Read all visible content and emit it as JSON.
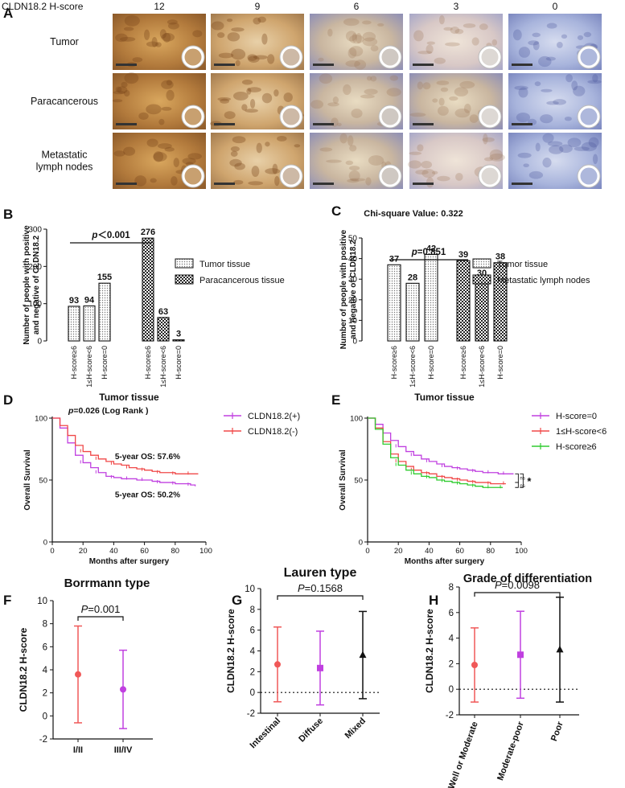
{
  "panel_a": {
    "letter": "A",
    "header_label": "CLDN18.2 H-score",
    "columns": [
      "12",
      "9",
      "6",
      "3",
      "0"
    ],
    "rows": [
      {
        "lines": [
          "Tumor"
        ]
      },
      {
        "lines": [
          "Paracancerous"
        ]
      },
      {
        "lines": [
          "Metastatic",
          "lymph nodes"
        ]
      }
    ]
  },
  "chart_data": [
    {
      "id": "B",
      "letter": "B",
      "type": "bar",
      "ylabel_lines": [
        "Number of people with positive",
        "and negative of CLDN18.2"
      ],
      "ylim": [
        0,
        300
      ],
      "yticks": [
        0,
        100,
        200,
        300
      ],
      "pvalue": {
        "prefix": "p",
        "rest": "＜0.001"
      },
      "categories": [
        "H-score≥6",
        "1≤H-score<6",
        "H-score=0"
      ],
      "series": [
        {
          "name": "Tumor tissue",
          "values": [
            93,
            94,
            155
          ]
        },
        {
          "name": "Paracancerous tissue",
          "values": [
            276,
            63,
            3
          ]
        }
      ],
      "legend_position": "right"
    },
    {
      "id": "C",
      "letter": "C",
      "type": "bar",
      "title": "Chi-square Value: 0.322",
      "ylabel_lines": [
        "Number of people with positive",
        "and negative of CLDN18.2"
      ],
      "ylim": [
        0,
        50
      ],
      "yticks": [
        0,
        10,
        20,
        30,
        40,
        50
      ],
      "pvalue": {
        "prefix": "p",
        "rest": "=0.851"
      },
      "categories": [
        "H-score≥6",
        "1≤H-score<6",
        "H-score=0"
      ],
      "series": [
        {
          "name": "Tumor tissue",
          "values": [
            37,
            28,
            42
          ]
        },
        {
          "name": "Metastatic lymph nodes",
          "values": [
            39,
            30,
            38
          ]
        }
      ],
      "legend_position": "right"
    },
    {
      "id": "D",
      "letter": "D",
      "type": "line",
      "title": "Tumor tissue",
      "subtitle": {
        "prefix": "p",
        "rest": "=0.026 (Log Rank )"
      },
      "xlabel": "Months after surgery",
      "ylabel": "Overall Survival",
      "xlim": [
        0,
        100
      ],
      "ylim": [
        0,
        100
      ],
      "xticks": [
        0,
        20,
        40,
        60,
        80,
        100
      ],
      "yticks": [
        0,
        50,
        100
      ],
      "annotations": [
        "5-year OS: 57.6%",
        "5-year OS: 50.2%"
      ],
      "series": [
        {
          "name": "CLDN18.2(+)",
          "color": "#c040e0",
          "x": [
            0,
            5,
            10,
            15,
            20,
            25,
            30,
            35,
            40,
            45,
            50,
            55,
            60,
            65,
            70,
            75,
            80,
            85,
            90,
            93
          ],
          "y": [
            100,
            92,
            80,
            70,
            64,
            60,
            56,
            53,
            52,
            51,
            51,
            50,
            50,
            49,
            48,
            48,
            47,
            47,
            46,
            45
          ]
        },
        {
          "name": "CLDN18.2(-)",
          "color": "#f04848",
          "x": [
            0,
            5,
            10,
            15,
            20,
            25,
            30,
            35,
            40,
            45,
            50,
            55,
            60,
            65,
            70,
            75,
            80,
            85,
            90,
            95
          ],
          "y": [
            100,
            94,
            86,
            78,
            73,
            70,
            67,
            65,
            63,
            62,
            60,
            59,
            58,
            57,
            56,
            56,
            55,
            55,
            55,
            55
          ]
        }
      ]
    },
    {
      "id": "E",
      "letter": "E",
      "type": "line",
      "title": "Tumor tissue",
      "xlabel": "Months after surgery",
      "ylabel": "Overall Survival",
      "xlim": [
        0,
        100
      ],
      "ylim": [
        0,
        100
      ],
      "xticks": [
        0,
        20,
        40,
        60,
        80,
        100
      ],
      "yticks": [
        0,
        50,
        100
      ],
      "brackets": [
        "ns",
        "ns",
        "*"
      ],
      "series": [
        {
          "name": "H-score=0",
          "color": "#c040e0",
          "x": [
            0,
            5,
            10,
            15,
            20,
            25,
            30,
            35,
            40,
            45,
            50,
            55,
            60,
            65,
            70,
            75,
            80,
            85,
            90,
            95
          ],
          "y": [
            100,
            95,
            88,
            82,
            77,
            73,
            70,
            67,
            65,
            63,
            61,
            60,
            59,
            58,
            57,
            56,
            56,
            55,
            55,
            55
          ]
        },
        {
          "name": "1≤H-score<6",
          "color": "#f04848",
          "x": [
            0,
            5,
            10,
            15,
            20,
            25,
            30,
            35,
            40,
            45,
            50,
            55,
            60,
            65,
            70,
            75,
            80,
            85,
            90
          ],
          "y": [
            100,
            92,
            81,
            71,
            65,
            61,
            58,
            56,
            55,
            53,
            52,
            51,
            50,
            49,
            48,
            48,
            47,
            47,
            47
          ]
        },
        {
          "name": "H-score≥6",
          "color": "#30cc30",
          "x": [
            0,
            5,
            10,
            15,
            20,
            25,
            30,
            35,
            40,
            45,
            50,
            55,
            60,
            65,
            70,
            75,
            80,
            85,
            88
          ],
          "y": [
            100,
            91,
            79,
            68,
            62,
            58,
            55,
            53,
            52,
            50,
            49,
            48,
            47,
            46,
            45,
            44,
            44,
            44,
            44
          ]
        }
      ]
    },
    {
      "id": "F",
      "letter": "F",
      "type": "scatter",
      "title": "Borrmann type",
      "ylabel": "CLDN18.2 H-score",
      "ylim": [
        -2,
        10
      ],
      "yticks": [
        -2,
        0,
        2,
        4,
        6,
        8,
        10
      ],
      "pvalue": {
        "prefix": "P",
        "rest": "=0.001"
      },
      "categories": [
        "I/II",
        "III/IV"
      ],
      "groups": [
        {
          "mean": 3.6,
          "low": -0.6,
          "high": 7.8,
          "color": "#f05858",
          "marker": "circle"
        },
        {
          "mean": 2.3,
          "low": -1.1,
          "high": 5.7,
          "color": "#c040e0",
          "marker": "circle"
        }
      ]
    },
    {
      "id": "G",
      "letter": "G",
      "type": "scatter",
      "title": "Lauren type",
      "ylabel": "CLDN18.2 H-score",
      "ylim": [
        -2,
        10
      ],
      "yticks": [
        -2,
        0,
        2,
        4,
        6,
        8,
        10
      ],
      "pvalue": {
        "prefix": "P",
        "rest": "=0.1568"
      },
      "categories": [
        "Intestinal",
        "Diffuse",
        "Mixed"
      ],
      "groups": [
        {
          "mean": 2.7,
          "low": -0.9,
          "high": 6.3,
          "color": "#f05858",
          "marker": "circle"
        },
        {
          "mean": 2.35,
          "low": -1.2,
          "high": 5.9,
          "color": "#c040e0",
          "marker": "square"
        },
        {
          "mean": 3.6,
          "low": -0.6,
          "high": 7.8,
          "color": "#111111",
          "marker": "triangle"
        }
      ]
    },
    {
      "id": "H",
      "letter": "H",
      "type": "scatter",
      "title": "Grade of differentiation",
      "ylabel": "CLDN18.2 H-score",
      "ylim": [
        -2,
        8
      ],
      "yticks": [
        -2,
        0,
        2,
        4,
        6,
        8
      ],
      "pvalue": {
        "prefix": "P",
        "rest": "=0.0098"
      },
      "categories": [
        "Well or Moderate",
        "Moderate-poor",
        "Poor"
      ],
      "groups": [
        {
          "mean": 1.9,
          "low": -1.0,
          "high": 4.8,
          "color": "#f05858",
          "marker": "circle"
        },
        {
          "mean": 2.7,
          "low": -0.7,
          "high": 6.1,
          "color": "#c040e0",
          "marker": "square"
        },
        {
          "mean": 3.1,
          "low": -1.0,
          "high": 7.2,
          "color": "#111111",
          "marker": "triangle"
        }
      ]
    }
  ]
}
